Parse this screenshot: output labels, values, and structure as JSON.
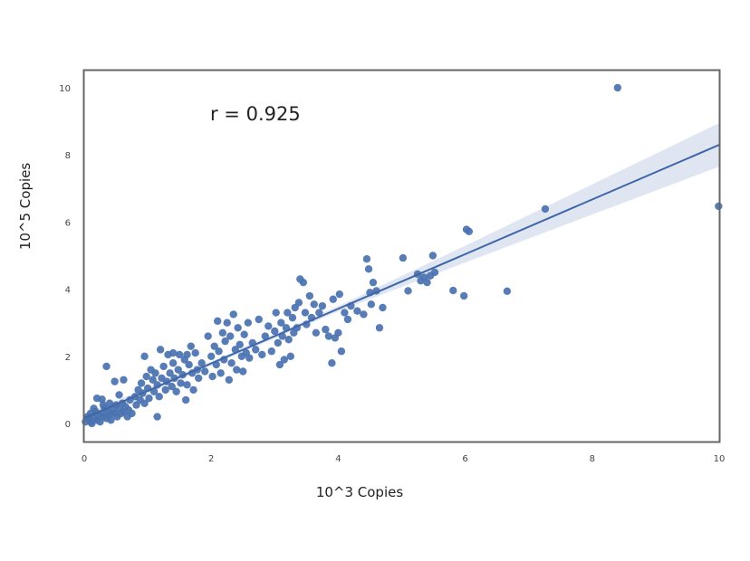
{
  "chart_data": {
    "type": "scatter",
    "title": "",
    "xlabel": "10^3 Copies",
    "ylabel": "10^5 Copies",
    "xlim": [
      0,
      10
    ],
    "ylim": [
      -0.5,
      10.5
    ],
    "xticks": [
      0,
      2,
      4,
      6,
      8,
      10
    ],
    "yticks": [
      0,
      2,
      4,
      6,
      8,
      10
    ],
    "grid": false,
    "legend": null,
    "annotation": {
      "text": "r = 0.925",
      "x": 2.0,
      "y": 9.2
    },
    "regression": {
      "type": "linear-fit-with-ci",
      "intercept": 0.16,
      "slope": 0.814,
      "ci_halfwidth_at": [
        [
          0,
          0.12
        ],
        [
          2,
          0.06
        ],
        [
          4,
          0.08
        ],
        [
          6,
          0.25
        ],
        [
          8,
          0.45
        ],
        [
          10,
          0.65
        ]
      ]
    },
    "colors": {
      "points": "#4a72b0",
      "line": "#3f67a8",
      "ci_band": "#dfe6f2",
      "frame": "#666666"
    },
    "points": [
      [
        0.02,
        0.05
      ],
      [
        0.05,
        0.2
      ],
      [
        0.08,
        0.1
      ],
      [
        0.1,
        0.3
      ],
      [
        0.12,
        0.0
      ],
      [
        0.15,
        0.15
      ],
      [
        0.18,
        0.35
      ],
      [
        0.2,
        0.1
      ],
      [
        0.22,
        0.25
      ],
      [
        0.25,
        0.05
      ],
      [
        0.28,
        0.3
      ],
      [
        0.3,
        0.2
      ],
      [
        0.32,
        0.45
      ],
      [
        0.35,
        0.15
      ],
      [
        0.38,
        0.35
      ],
      [
        0.4,
        0.25
      ],
      [
        0.42,
        0.1
      ],
      [
        0.45,
        0.4
      ],
      [
        0.48,
        0.3
      ],
      [
        0.5,
        0.55
      ],
      [
        0.52,
        0.2
      ],
      [
        0.55,
        0.45
      ],
      [
        0.58,
        0.3
      ],
      [
        0.6,
        0.6
      ],
      [
        0.62,
        0.35
      ],
      [
        0.65,
        0.5
      ],
      [
        0.68,
        0.2
      ],
      [
        0.7,
        0.4
      ],
      [
        0.72,
        0.7
      ],
      [
        0.75,
        0.3
      ],
      [
        0.2,
        0.75
      ],
      [
        0.28,
        0.72
      ],
      [
        0.35,
        1.7
      ],
      [
        0.48,
        1.25
      ],
      [
        0.62,
        1.3
      ],
      [
        0.55,
        0.85
      ],
      [
        0.3,
        0.55
      ],
      [
        0.4,
        0.6
      ],
      [
        0.15,
        0.45
      ],
      [
        0.1,
        0.05
      ],
      [
        0.8,
        0.8
      ],
      [
        0.82,
        0.55
      ],
      [
        0.85,
        1.0
      ],
      [
        0.88,
        0.7
      ],
      [
        0.9,
        1.2
      ],
      [
        0.92,
        0.9
      ],
      [
        0.95,
        0.6
      ],
      [
        0.98,
        1.4
      ],
      [
        1.0,
        1.05
      ],
      [
        1.02,
        0.75
      ],
      [
        1.05,
        1.6
      ],
      [
        1.08,
        1.3
      ],
      [
        1.1,
        0.95
      ],
      [
        1.12,
        1.5
      ],
      [
        1.15,
        1.15
      ],
      [
        1.18,
        0.8
      ],
      [
        1.2,
        2.2
      ],
      [
        1.22,
        1.35
      ],
      [
        1.25,
        1.7
      ],
      [
        1.28,
        1.0
      ],
      [
        1.3,
        1.25
      ],
      [
        1.32,
        2.05
      ],
      [
        1.35,
        1.5
      ],
      [
        1.38,
        1.1
      ],
      [
        1.4,
        1.8
      ],
      [
        1.42,
        1.35
      ],
      [
        1.45,
        0.95
      ],
      [
        1.48,
        1.6
      ],
      [
        1.5,
        2.05
      ],
      [
        1.52,
        1.2
      ],
      [
        1.55,
        1.45
      ],
      [
        1.58,
        1.9
      ],
      [
        1.6,
        0.7
      ],
      [
        1.62,
        1.15
      ],
      [
        1.65,
        1.75
      ],
      [
        1.68,
        2.3
      ],
      [
        1.7,
        1.5
      ],
      [
        1.72,
        1.0
      ],
      [
        1.75,
        2.1
      ],
      [
        1.78,
        1.6
      ],
      [
        1.15,
        0.2
      ],
      [
        0.95,
        2.0
      ],
      [
        1.4,
        2.1
      ],
      [
        1.62,
        2.05
      ],
      [
        1.8,
        1.35
      ],
      [
        1.85,
        1.8
      ],
      [
        1.9,
        1.55
      ],
      [
        1.95,
        2.6
      ],
      [
        2.0,
        2.0
      ],
      [
        2.02,
        1.4
      ],
      [
        2.05,
        2.3
      ],
      [
        2.08,
        1.75
      ],
      [
        2.1,
        3.05
      ],
      [
        2.12,
        2.15
      ],
      [
        2.15,
        1.5
      ],
      [
        2.18,
        2.7
      ],
      [
        2.2,
        1.9
      ],
      [
        2.22,
        2.45
      ],
      [
        2.25,
        3.0
      ],
      [
        2.28,
        1.3
      ],
      [
        2.3,
        2.6
      ],
      [
        2.32,
        1.8
      ],
      [
        2.35,
        3.25
      ],
      [
        2.38,
        2.2
      ],
      [
        2.4,
        1.6
      ],
      [
        2.42,
        2.85
      ],
      [
        2.45,
        2.35
      ],
      [
        2.48,
        2.0
      ],
      [
        2.5,
        1.55
      ],
      [
        2.52,
        2.65
      ],
      [
        2.55,
        2.1
      ],
      [
        2.58,
        3.0
      ],
      [
        2.6,
        1.95
      ],
      [
        2.65,
        2.4
      ],
      [
        2.7,
        2.2
      ],
      [
        2.75,
        3.1
      ],
      [
        2.8,
        2.05
      ],
      [
        2.85,
        2.6
      ],
      [
        2.9,
        2.9
      ],
      [
        2.95,
        2.15
      ],
      [
        3.0,
        2.75
      ],
      [
        3.02,
        3.3
      ],
      [
        3.05,
        2.4
      ],
      [
        3.08,
        1.75
      ],
      [
        3.1,
        3.0
      ],
      [
        3.12,
        2.6
      ],
      [
        3.15,
        1.9
      ],
      [
        3.18,
        2.85
      ],
      [
        3.2,
        3.3
      ],
      [
        3.22,
        2.5
      ],
      [
        3.25,
        2.0
      ],
      [
        3.28,
        3.15
      ],
      [
        3.3,
        2.7
      ],
      [
        3.32,
        3.45
      ],
      [
        3.35,
        2.85
      ],
      [
        3.38,
        3.6
      ],
      [
        3.4,
        4.3
      ],
      [
        3.45,
        4.2
      ],
      [
        3.48,
        3.3
      ],
      [
        3.5,
        2.95
      ],
      [
        3.55,
        3.8
      ],
      [
        3.58,
        3.15
      ],
      [
        3.62,
        3.55
      ],
      [
        3.65,
        2.7
      ],
      [
        3.7,
        3.3
      ],
      [
        3.75,
        3.5
      ],
      [
        3.8,
        2.8
      ],
      [
        3.85,
        2.6
      ],
      [
        3.9,
        1.8
      ],
      [
        3.92,
        3.7
      ],
      [
        3.95,
        2.55
      ],
      [
        4.0,
        2.7
      ],
      [
        4.02,
        3.85
      ],
      [
        4.05,
        2.15
      ],
      [
        4.1,
        3.3
      ],
      [
        4.15,
        3.1
      ],
      [
        4.2,
        3.5
      ],
      [
        4.3,
        3.35
      ],
      [
        4.4,
        3.25
      ],
      [
        4.45,
        4.9
      ],
      [
        4.48,
        4.6
      ],
      [
        4.5,
        3.9
      ],
      [
        4.52,
        3.55
      ],
      [
        4.55,
        4.2
      ],
      [
        4.6,
        3.95
      ],
      [
        4.65,
        2.85
      ],
      [
        4.7,
        3.45
      ],
      [
        5.02,
        4.93
      ],
      [
        5.1,
        3.95
      ],
      [
        5.25,
        4.45
      ],
      [
        5.3,
        4.25
      ],
      [
        5.35,
        4.35
      ],
      [
        5.4,
        4.2
      ],
      [
        5.45,
        4.4
      ],
      [
        5.49,
        5.0
      ],
      [
        5.52,
        4.5
      ],
      [
        5.81,
        3.96
      ],
      [
        5.98,
        3.8
      ],
      [
        6.02,
        5.78
      ],
      [
        6.06,
        5.72
      ],
      [
        6.66,
        3.94
      ],
      [
        7.26,
        6.39
      ],
      [
        8.4,
        10.0
      ],
      [
        9.99,
        6.47
      ]
    ]
  }
}
